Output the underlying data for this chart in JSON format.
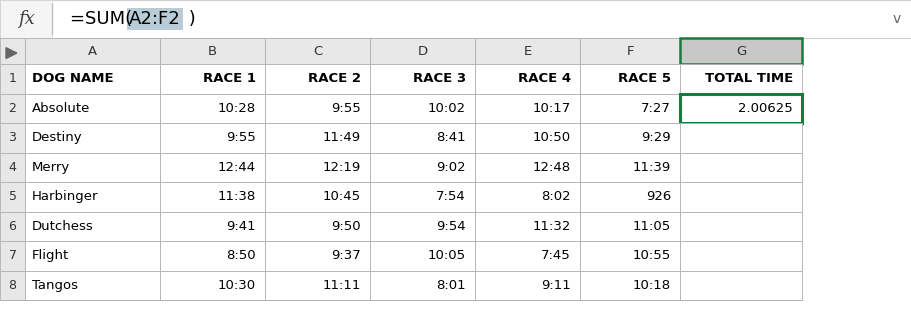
{
  "formula_icon": "fx",
  "col_headers": [
    "A",
    "B",
    "C",
    "D",
    "E",
    "F",
    "G"
  ],
  "row_numbers": [
    "1",
    "2",
    "3",
    "4",
    "5",
    "6",
    "7",
    "8"
  ],
  "header_row": [
    "DOG NAME",
    "RACE 1",
    "RACE 2",
    "RACE 3",
    "RACE 4",
    "RACE 5",
    "TOTAL TIME"
  ],
  "rows": [
    [
      "Absolute",
      "10:28",
      "9:55",
      "10:02",
      "10:17",
      "7:27",
      "2.00625"
    ],
    [
      "Destiny",
      "9:55",
      "11:49",
      "8:41",
      "10:50",
      "9:29",
      ""
    ],
    [
      "Merry",
      "12:44",
      "12:19",
      "9:02",
      "12:48",
      "11:39",
      ""
    ],
    [
      "Harbinger",
      "11:38",
      "10:45",
      "7:54",
      "8:02",
      "926",
      ""
    ],
    [
      "Dutchess",
      "9:41",
      "9:50",
      "9:54",
      "11:32",
      "11:05",
      ""
    ],
    [
      "Flight",
      "8:50",
      "9:37",
      "10:05",
      "7:45",
      "10:55",
      ""
    ],
    [
      "Tangos",
      "10:30",
      "11:11",
      "8:01",
      "9:11",
      "10:18",
      ""
    ]
  ],
  "bg_color": "#ffffff",
  "grid_color": "#b0b0b0",
  "header_bg": "#e8e8e8",
  "selected_col_bg": "#c8c8c8",
  "selected_cell_border": "#1a7a3c",
  "formula_highlight_bg": "#b8ccd8"
}
